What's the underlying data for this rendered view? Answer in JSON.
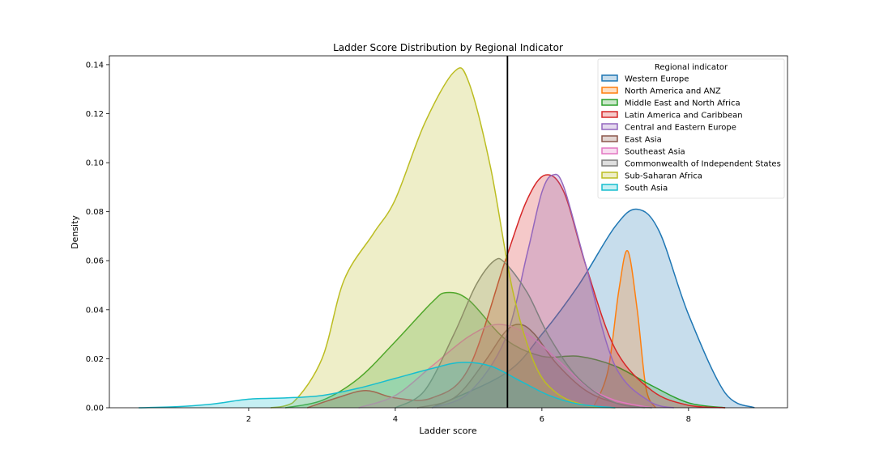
{
  "chart_data": {
    "type": "area",
    "title": "Ladder Score Distribution by Regional Indicator",
    "xlabel": "Ladder score",
    "ylabel": "Density",
    "xlim": [
      0.1,
      9.35
    ],
    "ylim": [
      0,
      0.1436
    ],
    "xticks": [
      2,
      4,
      6,
      8
    ],
    "yticks": [
      0.0,
      0.02,
      0.04,
      0.06,
      0.08,
      0.1,
      0.12,
      0.14
    ],
    "ytick_labels": [
      "0.00",
      "0.02",
      "0.04",
      "0.06",
      "0.08",
      "0.10",
      "0.12",
      "0.14"
    ],
    "xtick_labels": [
      "2",
      "4",
      "6",
      "8"
    ],
    "vline_x": 5.53,
    "legend": {
      "title": "Regional indicator",
      "placement": "upper-right"
    },
    "grid": false,
    "series": [
      {
        "name": "Western Europe",
        "color": "#1f77b4",
        "x": [
          4.5,
          5.5,
          6.0,
          6.5,
          7.0,
          7.3,
          7.6,
          8.0,
          8.5,
          8.9
        ],
        "y": [
          0.0,
          0.014,
          0.03,
          0.05,
          0.074,
          0.081,
          0.072,
          0.038,
          0.006,
          0.0
        ]
      },
      {
        "name": "North America and ANZ",
        "color": "#ff7f0e",
        "x": [
          6.7,
          6.9,
          7.05,
          7.17,
          7.3,
          7.42,
          7.55
        ],
        "y": [
          0.0,
          0.015,
          0.048,
          0.064,
          0.04,
          0.008,
          0.0
        ]
      },
      {
        "name": "Middle East and North Africa",
        "color": "#2ca02c",
        "x": [
          2.5,
          3.0,
          3.5,
          4.0,
          4.5,
          4.7,
          5.0,
          5.5,
          6.0,
          6.5,
          7.0,
          7.5,
          8.0,
          8.5
        ],
        "y": [
          0.0,
          0.003,
          0.012,
          0.027,
          0.043,
          0.047,
          0.044,
          0.028,
          0.021,
          0.021,
          0.017,
          0.009,
          0.002,
          0.0
        ]
      },
      {
        "name": "Latin America and Caribbean",
        "color": "#d62728",
        "x": [
          2.8,
          3.2,
          3.6,
          4.0,
          4.5,
          5.0,
          5.5,
          5.8,
          6.05,
          6.3,
          6.6,
          7.0,
          7.5,
          8.0,
          8.5
        ],
        "y": [
          0.0,
          0.004,
          0.007,
          0.004,
          0.004,
          0.016,
          0.06,
          0.085,
          0.095,
          0.088,
          0.058,
          0.024,
          0.007,
          0.001,
          0.0
        ]
      },
      {
        "name": "Central and Eastern Europe",
        "color": "#9467bd",
        "x": [
          4.5,
          5.0,
          5.5,
          5.8,
          6.0,
          6.15,
          6.3,
          6.6,
          7.0,
          7.5,
          7.8
        ],
        "y": [
          0.0,
          0.006,
          0.028,
          0.063,
          0.088,
          0.095,
          0.09,
          0.058,
          0.017,
          0.002,
          0.0
        ]
      },
      {
        "name": "East Asia",
        "color": "#8c564b",
        "x": [
          4.3,
          4.8,
          5.2,
          5.5,
          5.7,
          5.9,
          6.2,
          6.6,
          7.0,
          7.4
        ],
        "y": [
          0.0,
          0.004,
          0.018,
          0.031,
          0.034,
          0.03,
          0.018,
          0.007,
          0.002,
          0.0
        ]
      },
      {
        "name": "Southeast Asia",
        "color": "#e377c2",
        "x": [
          3.5,
          4.0,
          4.5,
          5.0,
          5.4,
          5.8,
          6.2,
          6.6,
          7.0,
          7.5
        ],
        "y": [
          0.0,
          0.005,
          0.017,
          0.029,
          0.034,
          0.03,
          0.02,
          0.009,
          0.003,
          0.0
        ]
      },
      {
        "name": "Commonwealth of Independent States",
        "color": "#7f7f7f",
        "x": [
          4.0,
          4.4,
          4.8,
          5.1,
          5.35,
          5.5,
          5.8,
          6.1,
          6.5,
          7.0,
          7.5
        ],
        "y": [
          0.0,
          0.007,
          0.03,
          0.05,
          0.06,
          0.059,
          0.047,
          0.029,
          0.012,
          0.002,
          0.0
        ]
      },
      {
        "name": "Sub-Saharan Africa",
        "color": "#bcbd22",
        "x": [
          2.3,
          2.6,
          3.0,
          3.3,
          3.7,
          4.0,
          4.4,
          4.8,
          5.0,
          5.3,
          5.6,
          5.9,
          6.2,
          6.6,
          7.0
        ],
        "y": [
          0.0,
          0.002,
          0.02,
          0.052,
          0.071,
          0.085,
          0.116,
          0.137,
          0.133,
          0.098,
          0.048,
          0.018,
          0.006,
          0.001,
          0.0
        ]
      },
      {
        "name": "South Asia",
        "color": "#17becf",
        "x": [
          0.5,
          1.0,
          1.5,
          2.0,
          2.5,
          3.0,
          3.5,
          4.0,
          4.5,
          4.9,
          5.3,
          5.7,
          6.1,
          6.5,
          7.0
        ],
        "y": [
          0.0,
          0.0004,
          0.0015,
          0.0035,
          0.004,
          0.005,
          0.008,
          0.012,
          0.016,
          0.0185,
          0.017,
          0.011,
          0.005,
          0.0015,
          0.0
        ]
      }
    ]
  }
}
